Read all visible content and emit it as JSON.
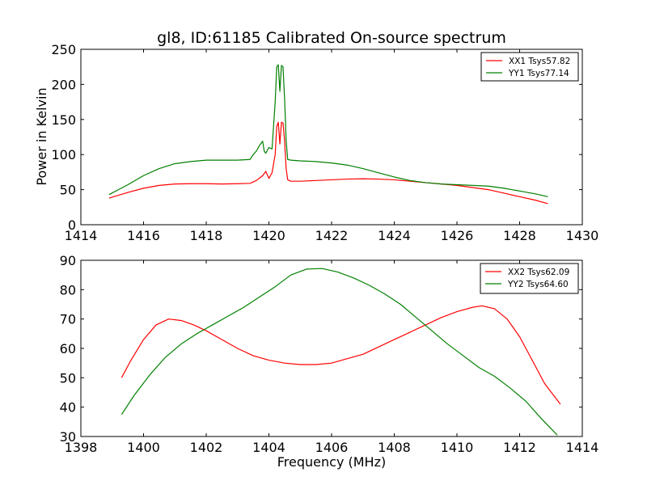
{
  "figure": {
    "title": "gl8, ID:61185 Calibrated On-source spectrum",
    "xlabel": "Frequency (MHz)",
    "ylabel": "Power in Kelvin"
  },
  "chart_data": [
    {
      "type": "line",
      "title": "gl8, ID:61185 Calibrated On-source spectrum",
      "xlabel": "",
      "ylabel": "Power in Kelvin",
      "xlim": [
        1414,
        1430
      ],
      "ylim": [
        0,
        250
      ],
      "xticks": [
        1414,
        1416,
        1418,
        1420,
        1422,
        1424,
        1426,
        1428,
        1430
      ],
      "yticks": [
        0,
        50,
        100,
        150,
        200,
        250
      ],
      "grid": false,
      "legend_position": "top-right",
      "series": [
        {
          "name": "XX1 Tsys57.82",
          "color": "#ff0000",
          "x": [
            1414.9,
            1415.2,
            1415.5,
            1416.0,
            1416.5,
            1417.0,
            1417.5,
            1418.0,
            1418.5,
            1419.0,
            1419.4,
            1419.6,
            1419.8,
            1419.9,
            1420.0,
            1420.1,
            1420.2,
            1420.25,
            1420.3,
            1420.35,
            1420.4,
            1420.45,
            1420.5,
            1420.55,
            1420.6,
            1420.7,
            1421.0,
            1421.5,
            1422.0,
            1422.5,
            1423.0,
            1423.5,
            1424.0,
            1424.5,
            1425.0,
            1425.5,
            1426.0,
            1426.5,
            1427.0,
            1427.5,
            1428.0,
            1428.5,
            1428.9
          ],
          "y": [
            38,
            42,
            46,
            52,
            56,
            58,
            58.5,
            58.5,
            58,
            58.5,
            59,
            63,
            70,
            76,
            66,
            74,
            100,
            140,
            146,
            115,
            146,
            145,
            120,
            80,
            64,
            62,
            62,
            63,
            64,
            65,
            65.5,
            65,
            64,
            62,
            60,
            58,
            56,
            53,
            50,
            45,
            40,
            35,
            30
          ]
        },
        {
          "name": "YY1 Tsys77.14",
          "color": "#008000",
          "x": [
            1414.9,
            1415.2,
            1415.5,
            1416.0,
            1416.5,
            1417.0,
            1417.5,
            1418.0,
            1418.5,
            1419.0,
            1419.4,
            1419.5,
            1419.6,
            1419.7,
            1419.8,
            1419.85,
            1419.9,
            1420.0,
            1420.1,
            1420.2,
            1420.25,
            1420.3,
            1420.35,
            1420.4,
            1420.45,
            1420.5,
            1420.55,
            1420.6,
            1420.7,
            1421.0,
            1421.5,
            1422.0,
            1422.5,
            1423.0,
            1423.5,
            1424.0,
            1424.5,
            1425.0,
            1425.5,
            1426.0,
            1426.5,
            1427.0,
            1427.5,
            1428.0,
            1428.5,
            1428.9
          ],
          "y": [
            43,
            50,
            57,
            70,
            80,
            87,
            90,
            92,
            92,
            92,
            93,
            100,
            105,
            113,
            119,
            105,
            102,
            110,
            108,
            175,
            225,
            228,
            190,
            227,
            225,
            180,
            120,
            93,
            92,
            91,
            90,
            88,
            85,
            80,
            74,
            68,
            63,
            60,
            58,
            57,
            56,
            55,
            52,
            48,
            44,
            40
          ]
        }
      ]
    },
    {
      "type": "line",
      "title": "",
      "xlabel": "Frequency (MHz)",
      "ylabel": "",
      "xlim": [
        1398,
        1414
      ],
      "ylim": [
        30,
        90
      ],
      "xticks": [
        1398,
        1400,
        1402,
        1404,
        1406,
        1408,
        1410,
        1412,
        1414
      ],
      "yticks": [
        30,
        40,
        50,
        60,
        70,
        80,
        90
      ],
      "grid": false,
      "legend_position": "top-right",
      "series": [
        {
          "name": "XX2 Tsys62.09",
          "color": "#ff0000",
          "x": [
            1399.3,
            1399.6,
            1400.0,
            1400.4,
            1400.8,
            1401.2,
            1401.6,
            1402.0,
            1402.5,
            1403.0,
            1403.5,
            1404.0,
            1404.5,
            1405.0,
            1405.5,
            1406.0,
            1406.5,
            1407.0,
            1407.5,
            1408.0,
            1408.5,
            1409.0,
            1409.5,
            1410.0,
            1410.5,
            1410.8,
            1411.2,
            1411.6,
            1412.0,
            1412.4,
            1412.8,
            1413.3
          ],
          "y": [
            50,
            56,
            63,
            68,
            70,
            69.5,
            68,
            66,
            63,
            60,
            57.5,
            56,
            55,
            54.5,
            54.5,
            55,
            56.5,
            58,
            60.5,
            63,
            65.5,
            68,
            70.5,
            72.5,
            74,
            74.5,
            73.5,
            70,
            64,
            56,
            48,
            41
          ]
        },
        {
          "name": "YY2 Tsys64.60",
          "color": "#008000",
          "x": [
            1399.3,
            1399.7,
            1400.2,
            1400.7,
            1401.2,
            1401.7,
            1402.2,
            1402.7,
            1403.2,
            1403.7,
            1404.2,
            1404.7,
            1405.2,
            1405.7,
            1406.2,
            1406.7,
            1407.2,
            1407.7,
            1408.2,
            1408.7,
            1409.2,
            1409.7,
            1410.2,
            1410.7,
            1411.2,
            1411.7,
            1412.2,
            1412.7,
            1413.2
          ],
          "y": [
            37.5,
            44,
            51,
            57,
            61.5,
            65,
            68,
            71,
            74,
            77.5,
            81,
            85,
            87,
            87.2,
            86,
            84,
            81.5,
            78.5,
            75,
            70.5,
            66,
            61.5,
            57.5,
            53.5,
            50.5,
            46.5,
            42,
            36,
            30.5
          ]
        }
      ]
    }
  ]
}
